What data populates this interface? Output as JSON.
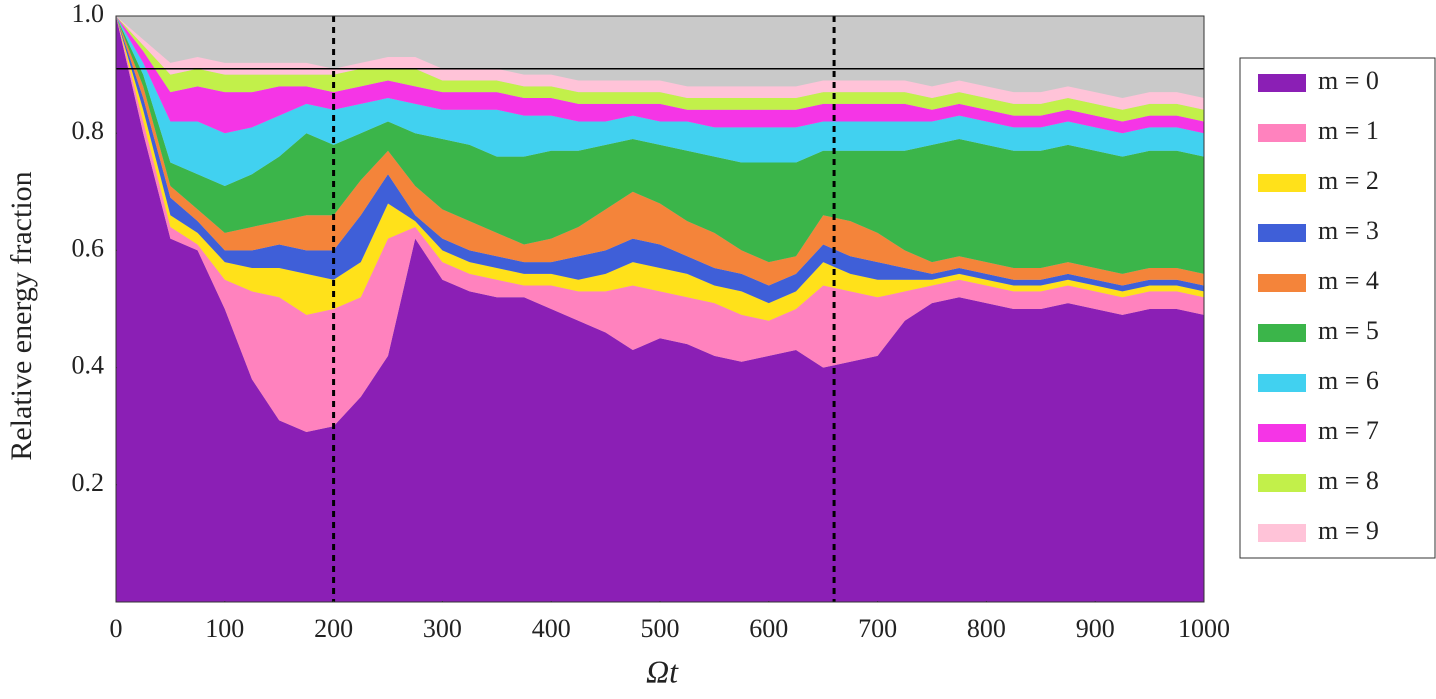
{
  "chart_data": {
    "type": "stacked_area",
    "x_label": "Ωt",
    "y_label": "Relative energy fraction",
    "x": [
      0,
      25,
      50,
      75,
      100,
      125,
      150,
      175,
      200,
      225,
      250,
      275,
      300,
      325,
      350,
      375,
      400,
      425,
      450,
      475,
      500,
      525,
      550,
      575,
      600,
      625,
      650,
      675,
      700,
      725,
      750,
      775,
      800,
      825,
      850,
      875,
      900,
      925,
      950,
      975,
      1000
    ],
    "series": [
      {
        "name": "m = 0",
        "color": "#8b1fb5",
        "values": [
          1,
          0.8,
          0.62,
          0.6,
          0.5,
          0.38,
          0.31,
          0.29,
          0.3,
          0.35,
          0.42,
          0.62,
          0.55,
          0.53,
          0.52,
          0.52,
          0.5,
          0.48,
          0.46,
          0.43,
          0.45,
          0.44,
          0.42,
          0.41,
          0.42,
          0.43,
          0.4,
          0.41,
          0.42,
          0.48,
          0.51,
          0.52,
          0.51,
          0.5,
          0.5,
          0.51,
          0.5,
          0.49,
          0.5,
          0.5,
          0.49
        ]
      },
      {
        "name": "m = 1",
        "color": "#ff82be",
        "values": [
          0,
          0.02,
          0.02,
          0.01,
          0.05,
          0.15,
          0.21,
          0.2,
          0.2,
          0.17,
          0.2,
          0.02,
          0.03,
          0.03,
          0.03,
          0.02,
          0.04,
          0.05,
          0.07,
          0.11,
          0.08,
          0.08,
          0.09,
          0.08,
          0.06,
          0.07,
          0.14,
          0.12,
          0.1,
          0.05,
          0.03,
          0.03,
          0.03,
          0.03,
          0.03,
          0.03,
          0.03,
          0.03,
          0.03,
          0.03,
          0.03
        ]
      },
      {
        "name": "m = 2",
        "color": "#ffe11a",
        "values": [
          0,
          0.02,
          0.02,
          0.02,
          0.03,
          0.04,
          0.05,
          0.07,
          0.05,
          0.06,
          0.06,
          0.01,
          0.02,
          0.02,
          0.02,
          0.02,
          0.02,
          0.02,
          0.03,
          0.04,
          0.04,
          0.04,
          0.03,
          0.04,
          0.03,
          0.03,
          0.04,
          0.03,
          0.03,
          0.02,
          0.01,
          0.01,
          0.01,
          0.01,
          0.01,
          0.01,
          0.01,
          0.01,
          0.01,
          0.01,
          0.01
        ]
      },
      {
        "name": "m = 3",
        "color": "#3f5fd8",
        "values": [
          0,
          0.02,
          0.03,
          0.02,
          0.02,
          0.03,
          0.04,
          0.04,
          0.05,
          0.08,
          0.05,
          0.01,
          0.02,
          0.02,
          0.02,
          0.02,
          0.02,
          0.04,
          0.04,
          0.04,
          0.04,
          0.03,
          0.03,
          0.03,
          0.03,
          0.03,
          0.03,
          0.03,
          0.03,
          0.02,
          0.01,
          0.01,
          0.01,
          0.01,
          0.01,
          0.01,
          0.01,
          0.01,
          0.01,
          0.01,
          0.01
        ]
      },
      {
        "name": "m = 4",
        "color": "#f4843a",
        "values": [
          0,
          0.02,
          0.02,
          0.02,
          0.03,
          0.04,
          0.04,
          0.06,
          0.06,
          0.06,
          0.04,
          0.05,
          0.05,
          0.05,
          0.04,
          0.03,
          0.04,
          0.05,
          0.07,
          0.08,
          0.07,
          0.06,
          0.06,
          0.04,
          0.04,
          0.03,
          0.05,
          0.06,
          0.05,
          0.03,
          0.02,
          0.02,
          0.02,
          0.02,
          0.02,
          0.02,
          0.02,
          0.02,
          0.02,
          0.02,
          0.02
        ]
      },
      {
        "name": "m = 5",
        "color": "#3bb54a",
        "values": [
          0,
          0.02,
          0.04,
          0.06,
          0.08,
          0.09,
          0.11,
          0.14,
          0.12,
          0.08,
          0.05,
          0.09,
          0.12,
          0.13,
          0.13,
          0.15,
          0.15,
          0.13,
          0.11,
          0.09,
          0.1,
          0.12,
          0.13,
          0.15,
          0.17,
          0.16,
          0.11,
          0.12,
          0.14,
          0.17,
          0.2,
          0.2,
          0.2,
          0.2,
          0.2,
          0.2,
          0.2,
          0.2,
          0.2,
          0.2,
          0.2
        ]
      },
      {
        "name": "m = 6",
        "color": "#41d1f0",
        "values": [
          0,
          0.02,
          0.07,
          0.09,
          0.09,
          0.08,
          0.07,
          0.05,
          0.06,
          0.05,
          0.04,
          0.05,
          0.05,
          0.06,
          0.08,
          0.07,
          0.06,
          0.05,
          0.04,
          0.04,
          0.04,
          0.05,
          0.05,
          0.06,
          0.06,
          0.06,
          0.05,
          0.05,
          0.05,
          0.05,
          0.04,
          0.04,
          0.04,
          0.04,
          0.04,
          0.04,
          0.04,
          0.04,
          0.04,
          0.04,
          0.04
        ]
      },
      {
        "name": "m = 7",
        "color": "#f535e6",
        "values": [
          0,
          0.02,
          0.05,
          0.06,
          0.07,
          0.06,
          0.05,
          0.03,
          0.03,
          0.03,
          0.03,
          0.03,
          0.03,
          0.03,
          0.03,
          0.03,
          0.03,
          0.03,
          0.03,
          0.02,
          0.03,
          0.02,
          0.03,
          0.03,
          0.03,
          0.03,
          0.03,
          0.03,
          0.03,
          0.03,
          0.02,
          0.02,
          0.02,
          0.02,
          0.02,
          0.02,
          0.02,
          0.02,
          0.02,
          0.02,
          0.02
        ]
      },
      {
        "name": "m = 8",
        "color": "#c2f04a",
        "values": [
          0,
          0.01,
          0.03,
          0.03,
          0.03,
          0.03,
          0.02,
          0.02,
          0.03,
          0.03,
          0.02,
          0.03,
          0.02,
          0.02,
          0.02,
          0.02,
          0.02,
          0.02,
          0.02,
          0.02,
          0.02,
          0.02,
          0.02,
          0.02,
          0.02,
          0.02,
          0.02,
          0.02,
          0.02,
          0.02,
          0.02,
          0.02,
          0.02,
          0.02,
          0.02,
          0.02,
          0.02,
          0.02,
          0.02,
          0.02,
          0.02
        ]
      },
      {
        "name": "m = 9",
        "color": "#ffc3d8",
        "values": [
          0,
          0.01,
          0.02,
          0.02,
          0.02,
          0.02,
          0.02,
          0.02,
          0.01,
          0.01,
          0.02,
          0.02,
          0.02,
          0.02,
          0.02,
          0.02,
          0.02,
          0.02,
          0.02,
          0.02,
          0.02,
          0.02,
          0.02,
          0.02,
          0.02,
          0.02,
          0.02,
          0.02,
          0.02,
          0.02,
          0.02,
          0.02,
          0.02,
          0.02,
          0.02,
          0.02,
          0.02,
          0.02,
          0.02,
          0.02,
          0.02
        ]
      }
    ],
    "xlim": [
      0,
      1000
    ],
    "xticks": [
      0,
      100,
      200,
      300,
      400,
      500,
      600,
      700,
      800,
      900,
      1000
    ],
    "ylim": [
      0,
      1
    ],
    "yticks": [
      0.2,
      0.4,
      0.6,
      0.8,
      {
        "value": 1,
        "label": "1.0"
      }
    ],
    "background": "#c9c9c9",
    "hline": 0.91,
    "vlines": [
      200,
      660
    ],
    "legend": "right"
  }
}
